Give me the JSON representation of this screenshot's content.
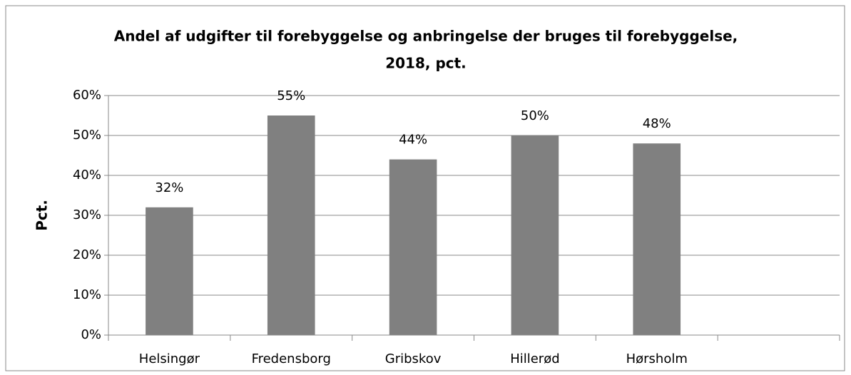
{
  "chart_data": {
    "type": "bar",
    "title": [
      "Andel af udgifter til forebyggelse og anbringelse der bruges til forebyggelse,",
      "2018, pct."
    ],
    "y_label": "Pct.",
    "categories": [
      "Helsingør",
      "Fredensborg",
      "Gribskov",
      "Hillerød",
      "Hørsholm",
      null
    ],
    "values": [
      32,
      55,
      44,
      50,
      48,
      null
    ],
    "value_labels": [
      "32%",
      "55%",
      "44%",
      "50%",
      "48%",
      null
    ],
    "color": "#808080",
    "ylim": [
      0,
      60
    ],
    "yticks": [
      {
        "value": 0,
        "label": "0%"
      },
      {
        "value": 10,
        "label": "10%"
      },
      {
        "value": 20,
        "label": "20%"
      },
      {
        "value": 30,
        "label": "30%"
      },
      {
        "value": 40,
        "label": "40%"
      },
      {
        "value": 50,
        "label": "50%"
      },
      {
        "value": 60,
        "label": "60%"
      }
    ],
    "grid": true
  }
}
